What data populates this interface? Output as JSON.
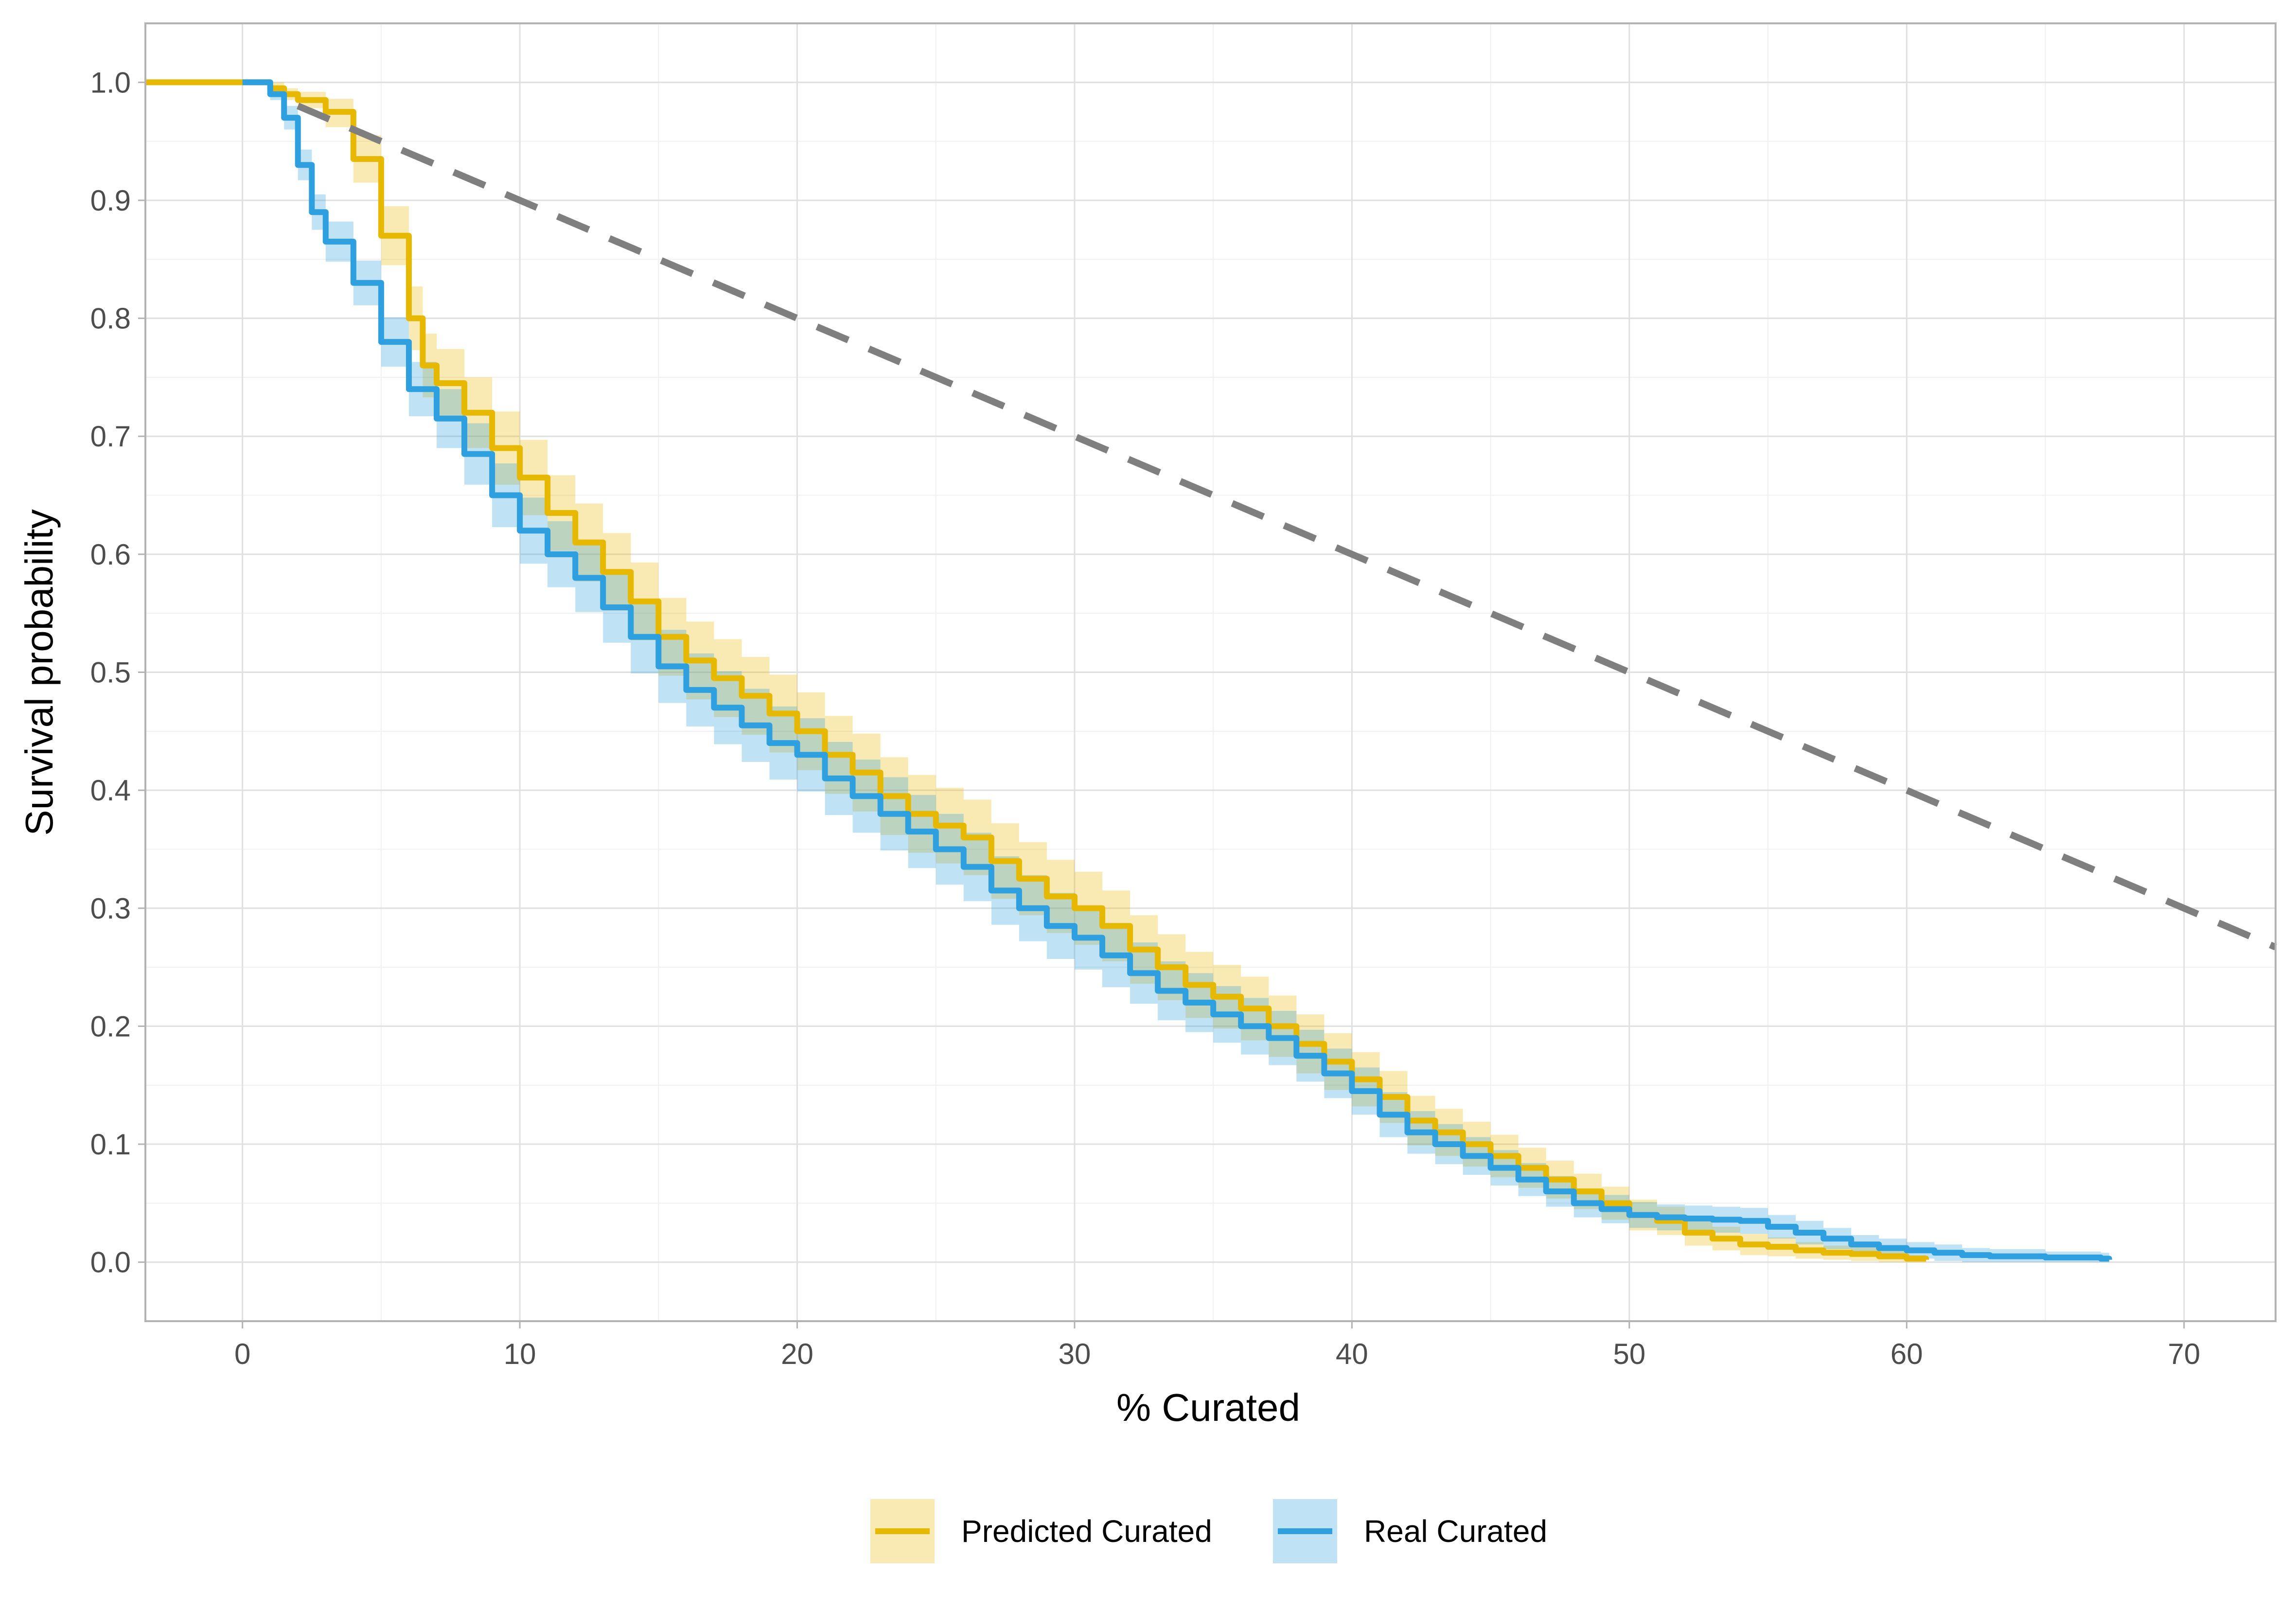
{
  "chart_data": {
    "type": "line",
    "xlabel": "% Curated",
    "ylabel": "Survival probability",
    "xlim": [
      -3.5,
      73.3
    ],
    "ylim": [
      -0.05,
      1.05
    ],
    "x_ticks": [
      "0",
      "10",
      "20",
      "30",
      "40",
      "50",
      "60",
      "70"
    ],
    "y_ticks": [
      "0.0",
      "0.1",
      "0.2",
      "0.3",
      "0.4",
      "0.5",
      "0.6",
      "0.7",
      "0.8",
      "0.9",
      "1.0"
    ],
    "grid": true,
    "legend_position": "bottom",
    "reference_line": {
      "style": "dashed",
      "color": "#7f7f7f",
      "x": [
        2,
        73.3
      ],
      "y": [
        0.98,
        0.267
      ]
    },
    "series": [
      {
        "name": "Predicted Curated",
        "color": "#E7B800",
        "x": [
          -3.5,
          0,
          1,
          1.5,
          2,
          3,
          4,
          5,
          6,
          6.5,
          7,
          8,
          9,
          10,
          11,
          12,
          13,
          14,
          15,
          16,
          17,
          18,
          19,
          20,
          21,
          22,
          23,
          24,
          25,
          26,
          27,
          28,
          29,
          30,
          31,
          32,
          33,
          34,
          35,
          36,
          37,
          38,
          39,
          40,
          41,
          42,
          43,
          44,
          45,
          46,
          47,
          48,
          49,
          50,
          51,
          52,
          53,
          54,
          55,
          56,
          57,
          58,
          59,
          60,
          60.7
        ],
        "y": [
          1.0,
          1.0,
          0.995,
          0.99,
          0.985,
          0.975,
          0.935,
          0.87,
          0.8,
          0.76,
          0.745,
          0.72,
          0.69,
          0.665,
          0.635,
          0.61,
          0.585,
          0.56,
          0.53,
          0.51,
          0.495,
          0.48,
          0.465,
          0.45,
          0.43,
          0.415,
          0.395,
          0.38,
          0.37,
          0.36,
          0.34,
          0.325,
          0.31,
          0.3,
          0.285,
          0.265,
          0.25,
          0.235,
          0.225,
          0.215,
          0.2,
          0.185,
          0.17,
          0.155,
          0.14,
          0.12,
          0.11,
          0.1,
          0.09,
          0.08,
          0.07,
          0.06,
          0.05,
          0.04,
          0.035,
          0.025,
          0.02,
          0.015,
          0.013,
          0.01,
          0.008,
          0.007,
          0.005,
          0.003,
          0.002
        ],
        "lower": [
          1.0,
          1.0,
          0.99,
          0.985,
          0.978,
          0.962,
          0.915,
          0.845,
          0.773,
          0.733,
          0.716,
          0.69,
          0.659,
          0.633,
          0.603,
          0.577,
          0.552,
          0.527,
          0.497,
          0.477,
          0.462,
          0.447,
          0.432,
          0.417,
          0.397,
          0.382,
          0.362,
          0.347,
          0.338,
          0.328,
          0.308,
          0.294,
          0.279,
          0.269,
          0.255,
          0.236,
          0.222,
          0.207,
          0.198,
          0.188,
          0.174,
          0.16,
          0.146,
          0.132,
          0.118,
          0.099,
          0.09,
          0.081,
          0.072,
          0.063,
          0.054,
          0.045,
          0.036,
          0.027,
          0.023,
          0.014,
          0.01,
          0.006,
          0.005,
          0.003,
          0.002,
          0.001,
          0.0,
          0.0,
          0.0
        ],
        "upper": [
          1.0,
          1.0,
          1.0,
          0.995,
          0.992,
          0.986,
          0.955,
          0.895,
          0.827,
          0.787,
          0.774,
          0.75,
          0.721,
          0.697,
          0.667,
          0.643,
          0.618,
          0.593,
          0.563,
          0.543,
          0.528,
          0.513,
          0.498,
          0.483,
          0.463,
          0.448,
          0.428,
          0.413,
          0.402,
          0.392,
          0.372,
          0.356,
          0.341,
          0.331,
          0.315,
          0.294,
          0.278,
          0.263,
          0.252,
          0.242,
          0.226,
          0.21,
          0.194,
          0.178,
          0.162,
          0.141,
          0.13,
          0.119,
          0.108,
          0.097,
          0.086,
          0.075,
          0.064,
          0.053,
          0.047,
          0.036,
          0.03,
          0.024,
          0.021,
          0.017,
          0.014,
          0.013,
          0.01,
          0.006,
          0.005
        ]
      },
      {
        "name": "Real Curated",
        "color": "#2E9FDF",
        "x": [
          0,
          0.5,
          1,
          1.5,
          2,
          2.5,
          3,
          4,
          5,
          6,
          7,
          8,
          9,
          10,
          11,
          12,
          13,
          14,
          15,
          16,
          17,
          18,
          19,
          20,
          21,
          22,
          23,
          24,
          25,
          26,
          27,
          28,
          29,
          30,
          31,
          32,
          33,
          34,
          35,
          36,
          37,
          38,
          39,
          40,
          41,
          42,
          43,
          44,
          45,
          46,
          47,
          48,
          49,
          50,
          51,
          52,
          53,
          54,
          55,
          56,
          57,
          58,
          59,
          60,
          61,
          62,
          63,
          64,
          65,
          66,
          67,
          67.3
        ],
        "y": [
          1.0,
          1.0,
          0.99,
          0.97,
          0.93,
          0.89,
          0.865,
          0.83,
          0.78,
          0.74,
          0.715,
          0.685,
          0.65,
          0.62,
          0.6,
          0.58,
          0.555,
          0.53,
          0.505,
          0.485,
          0.47,
          0.455,
          0.44,
          0.43,
          0.41,
          0.395,
          0.38,
          0.365,
          0.35,
          0.335,
          0.315,
          0.3,
          0.285,
          0.275,
          0.26,
          0.245,
          0.23,
          0.22,
          0.21,
          0.2,
          0.19,
          0.175,
          0.16,
          0.145,
          0.125,
          0.11,
          0.1,
          0.09,
          0.08,
          0.07,
          0.06,
          0.05,
          0.045,
          0.04,
          0.038,
          0.037,
          0.036,
          0.035,
          0.03,
          0.025,
          0.02,
          0.015,
          0.012,
          0.01,
          0.008,
          0.006,
          0.005,
          0.005,
          0.004,
          0.004,
          0.003,
          0.002
        ],
        "lower": [
          1.0,
          1.0,
          0.985,
          0.96,
          0.917,
          0.875,
          0.848,
          0.811,
          0.759,
          0.717,
          0.69,
          0.659,
          0.623,
          0.592,
          0.572,
          0.551,
          0.525,
          0.499,
          0.474,
          0.454,
          0.439,
          0.424,
          0.409,
          0.399,
          0.379,
          0.364,
          0.349,
          0.334,
          0.32,
          0.306,
          0.286,
          0.272,
          0.257,
          0.248,
          0.233,
          0.219,
          0.205,
          0.195,
          0.186,
          0.176,
          0.167,
          0.153,
          0.139,
          0.125,
          0.106,
          0.092,
          0.083,
          0.074,
          0.065,
          0.056,
          0.047,
          0.038,
          0.033,
          0.029,
          0.027,
          0.026,
          0.025,
          0.024,
          0.02,
          0.015,
          0.011,
          0.007,
          0.004,
          0.003,
          0.001,
          0.0,
          0.0,
          0.0,
          0.0,
          0.0,
          0.0,
          0.0
        ],
        "upper": [
          1.0,
          1.0,
          0.995,
          0.98,
          0.943,
          0.905,
          0.882,
          0.849,
          0.801,
          0.763,
          0.74,
          0.711,
          0.677,
          0.648,
          0.628,
          0.609,
          0.585,
          0.561,
          0.536,
          0.516,
          0.501,
          0.486,
          0.471,
          0.461,
          0.441,
          0.426,
          0.411,
          0.396,
          0.38,
          0.364,
          0.344,
          0.328,
          0.313,
          0.302,
          0.287,
          0.271,
          0.255,
          0.245,
          0.234,
          0.224,
          0.213,
          0.197,
          0.181,
          0.165,
          0.144,
          0.128,
          0.117,
          0.106,
          0.095,
          0.084,
          0.073,
          0.062,
          0.057,
          0.051,
          0.049,
          0.048,
          0.047,
          0.046,
          0.04,
          0.035,
          0.029,
          0.023,
          0.02,
          0.017,
          0.015,
          0.012,
          0.011,
          0.011,
          0.009,
          0.009,
          0.008,
          0.006
        ]
      }
    ]
  }
}
